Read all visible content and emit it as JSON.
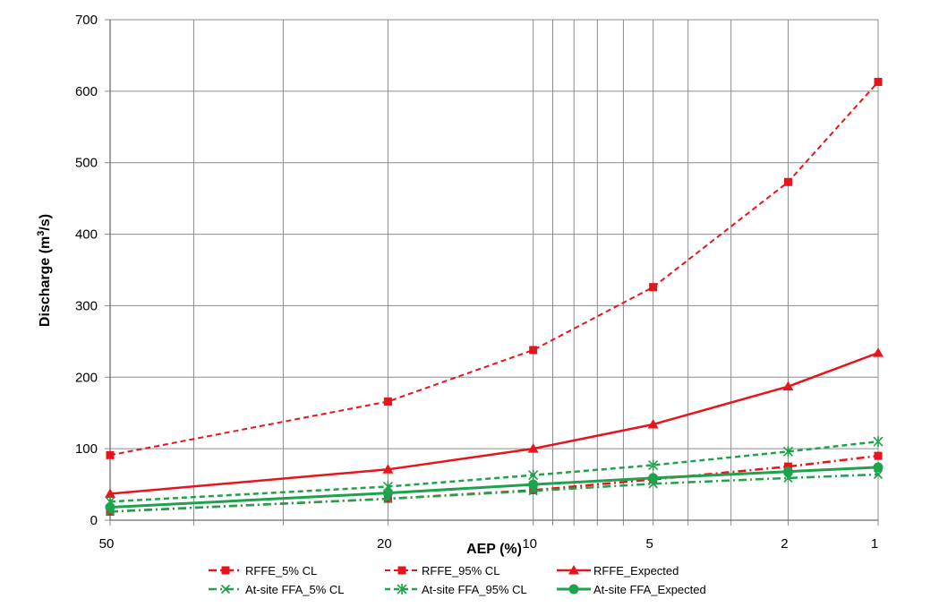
{
  "chart_data": {
    "type": "line",
    "x_scale": "probability (AEP)",
    "xlabel": "AEP (%)",
    "ylabel_main": "Discharge (m",
    "ylabel_sup": "3",
    "ylabel_tail": "/s)",
    "x_ticks": [
      50,
      20,
      10,
      5,
      2,
      1
    ],
    "x_tick_labels": [
      "50",
      "20",
      "10",
      "5",
      "2",
      "1"
    ],
    "x_gridlines": [
      50,
      40,
      30,
      20,
      10,
      9,
      8,
      7,
      6,
      5,
      4,
      3,
      2,
      1
    ],
    "ylim": [
      0,
      700
    ],
    "y_ticks": [
      0,
      100,
      200,
      300,
      400,
      500,
      600,
      700
    ],
    "y_tick_labels": [
      "0",
      "100",
      "200",
      "300",
      "400",
      "500",
      "600",
      "700"
    ],
    "grid": true,
    "legend_position": "bottom",
    "x": [
      50,
      20,
      10,
      5,
      2,
      1
    ],
    "series": [
      {
        "name": "RFFE_5% CL",
        "values": [
          12,
          30,
          42,
          57,
          75,
          90
        ],
        "color": "#e8141b",
        "dash": "dashdot",
        "marker": "square",
        "width": 2.5
      },
      {
        "name": "RFFE_95% CL",
        "values": [
          91,
          166,
          238,
          326,
          473,
          613
        ],
        "color": "#e8141b",
        "dash": "dash",
        "marker": "square",
        "width": 2
      },
      {
        "name": "RFFE_Expected",
        "values": [
          37,
          71,
          100,
          134,
          187,
          234
        ],
        "color": "#e8141b",
        "dash": "solid",
        "marker": "triangle",
        "width": 2.5
      },
      {
        "name": "At-site FFA_5% CL",
        "values": [
          12,
          30,
          41,
          51,
          59,
          64
        ],
        "color": "#1ea24c",
        "dash": "dashdot",
        "marker": "x",
        "width": 2.5
      },
      {
        "name": "At-site FFA_95% CL",
        "values": [
          26,
          47,
          63,
          77,
          96,
          110
        ],
        "color": "#1ea24c",
        "dash": "dash",
        "marker": "star",
        "width": 2.5
      },
      {
        "name": "At-site FFA_Expected",
        "values": [
          18,
          38,
          50,
          59,
          68,
          74
        ],
        "color": "#1ea24c",
        "dash": "solid",
        "marker": "circle",
        "width": 3
      }
    ]
  }
}
